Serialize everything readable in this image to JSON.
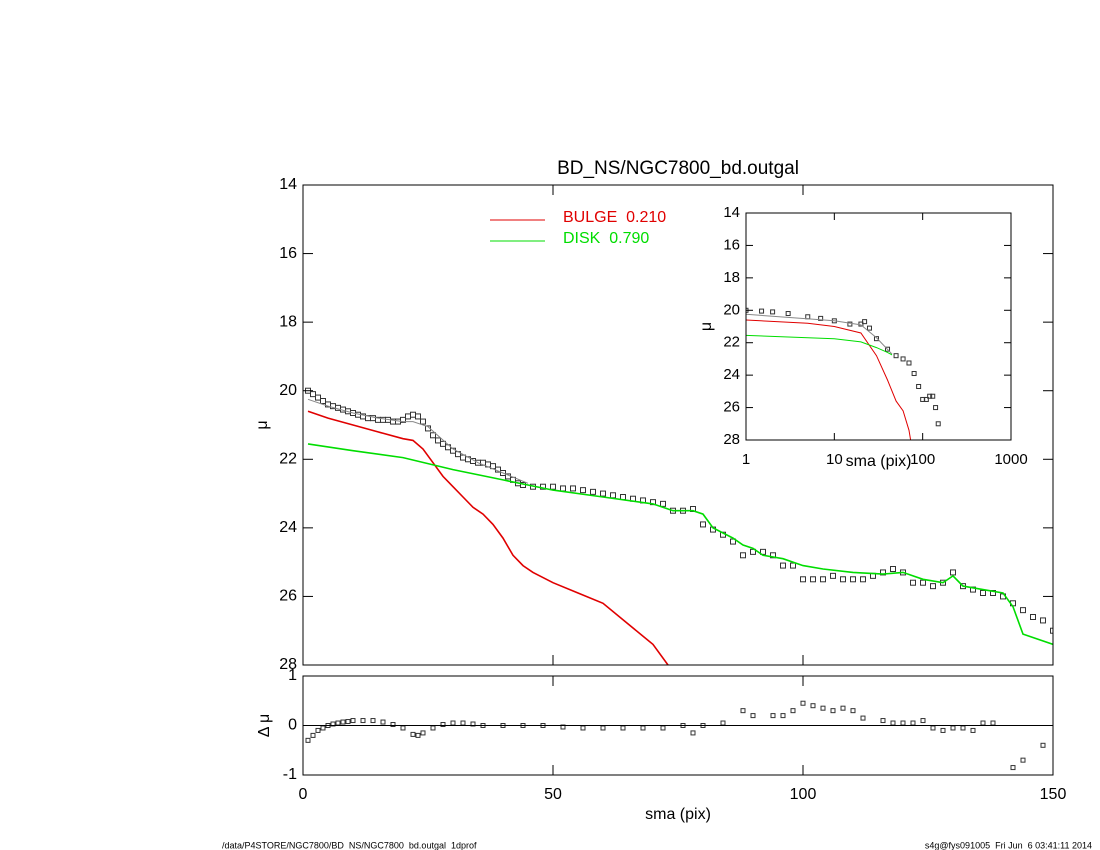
{
  "chart_data": [
    {
      "type": "line",
      "title": "BD_NS/NGC7800_bd.outgal",
      "ylabel": "μ",
      "xlim": [
        0,
        150
      ],
      "xticks": [
        0,
        50,
        100,
        150
      ],
      "xtick_labels": false,
      "ylim": [
        14,
        28
      ],
      "yticks": [
        14,
        16,
        18,
        20,
        22,
        24,
        26,
        28
      ],
      "y_inverted": true,
      "series": [
        {
          "style": "markers",
          "color": "#333333",
          "x": [
            1,
            2,
            3,
            4,
            5,
            6,
            7,
            8,
            9,
            10,
            11,
            12,
            13,
            14,
            15,
            16,
            17,
            18,
            19,
            20,
            21,
            22,
            23,
            24,
            25,
            26,
            27,
            28,
            29,
            30,
            31,
            32,
            33,
            34,
            35,
            36,
            37,
            38,
            39,
            40,
            41,
            42,
            43,
            44,
            46,
            48,
            50,
            52,
            54,
            56,
            58,
            60,
            62,
            64,
            66,
            68,
            70,
            72,
            74,
            76,
            78,
            80,
            82,
            84,
            86,
            88,
            90,
            92,
            94,
            96,
            98,
            100,
            102,
            104,
            106,
            108,
            110,
            112,
            114,
            116,
            118,
            120,
            122,
            124,
            126,
            128,
            130,
            132,
            134,
            136,
            138,
            140,
            142,
            144,
            146,
            148,
            150
          ],
          "values": [
            20.0,
            20.1,
            20.2,
            20.3,
            20.4,
            20.45,
            20.5,
            20.55,
            20.6,
            20.65,
            20.7,
            20.75,
            20.8,
            20.8,
            20.85,
            20.85,
            20.85,
            20.9,
            20.9,
            20.85,
            20.75,
            20.7,
            20.75,
            20.9,
            21.1,
            21.3,
            21.45,
            21.55,
            21.65,
            21.75,
            21.85,
            21.95,
            22.0,
            22.05,
            22.1,
            22.1,
            22.15,
            22.2,
            22.3,
            22.4,
            22.5,
            22.6,
            22.7,
            22.75,
            22.8,
            22.8,
            22.8,
            22.85,
            22.85,
            22.9,
            22.95,
            23.0,
            23.05,
            23.1,
            23.15,
            23.2,
            23.25,
            23.3,
            23.5,
            23.5,
            23.45,
            23.9,
            24.05,
            24.2,
            24.4,
            24.8,
            24.7,
            24.7,
            24.8,
            25.1,
            25.1,
            25.5,
            25.5,
            25.5,
            25.4,
            25.5,
            25.5,
            25.5,
            25.4,
            25.3,
            25.2,
            25.3,
            25.6,
            25.6,
            25.7,
            25.6,
            25.3,
            25.7,
            25.8,
            25.9,
            25.9,
            26.0,
            26.2,
            26.4,
            26.6,
            26.7,
            27.0
          ]
        },
        {
          "style": "line",
          "color": "#888888",
          "x": [
            1,
            5,
            10,
            15,
            20,
            22,
            25,
            30,
            35,
            40,
            45
          ],
          "values": [
            20.25,
            20.45,
            20.65,
            20.8,
            20.9,
            20.9,
            21.05,
            21.7,
            22.1,
            22.4,
            22.7
          ]
        },
        {
          "style": "line",
          "name": "BULGE  0.210",
          "color": "#e00000",
          "x": [
            1,
            5,
            10,
            15,
            20,
            22,
            24,
            26,
            28,
            30,
            32,
            34,
            36,
            38,
            40,
            42,
            44,
            46,
            50,
            55,
            60,
            65,
            70,
            73
          ],
          "values": [
            20.6,
            20.8,
            21.0,
            21.2,
            21.4,
            21.45,
            21.7,
            22.1,
            22.5,
            22.8,
            23.1,
            23.4,
            23.6,
            23.9,
            24.3,
            24.8,
            25.1,
            25.3,
            25.6,
            25.9,
            26.2,
            26.8,
            27.4,
            28.0
          ]
        },
        {
          "style": "line",
          "name": "DISK  0.790",
          "color": "#00dd00",
          "x": [
            1,
            10,
            20,
            30,
            40,
            50,
            60,
            70,
            74,
            78,
            80,
            82,
            86,
            88,
            90,
            92,
            96,
            100,
            104,
            110,
            116,
            120,
            124,
            128,
            130,
            132,
            136,
            140,
            142,
            144,
            150
          ],
          "values": [
            21.55,
            21.75,
            21.95,
            22.3,
            22.6,
            22.9,
            23.1,
            23.3,
            23.5,
            23.5,
            23.6,
            24.0,
            24.3,
            24.5,
            24.6,
            24.8,
            24.9,
            25.1,
            25.2,
            25.3,
            25.35,
            25.3,
            25.5,
            25.6,
            25.4,
            25.7,
            25.8,
            25.9,
            26.3,
            27.1,
            27.4
          ]
        }
      ]
    },
    {
      "type": "line",
      "xlabel": "sma (pix)",
      "ylabel": "μ",
      "xlog": true,
      "xlim": [
        1,
        1000
      ],
      "xticks": [
        1,
        10,
        100,
        1000
      ],
      "ylim": [
        14,
        28
      ],
      "yticks": [
        14,
        16,
        18,
        20,
        22,
        24,
        26,
        28
      ],
      "y_inverted": true,
      "series": [
        {
          "style": "markers",
          "color": "#333333",
          "x": [
            1,
            1.5,
            2,
            3,
            5,
            7,
            10,
            15,
            20,
            22,
            25,
            30,
            40,
            50,
            60,
            70,
            80,
            90,
            100,
            110,
            120,
            130,
            140,
            150
          ],
          "values": [
            20.0,
            20.05,
            20.1,
            20.2,
            20.4,
            20.5,
            20.65,
            20.85,
            20.85,
            20.7,
            21.1,
            21.75,
            22.4,
            22.8,
            23.0,
            23.25,
            23.9,
            24.7,
            25.5,
            25.5,
            25.3,
            25.3,
            26.0,
            27.0
          ]
        },
        {
          "style": "line",
          "color": "#888888",
          "x": [
            1,
            10,
            20,
            30,
            45
          ],
          "values": [
            20.25,
            20.65,
            20.9,
            21.7,
            22.7
          ]
        },
        {
          "style": "line",
          "color": "#e00000",
          "x": [
            1,
            5,
            10,
            20,
            30,
            40,
            50,
            60,
            70,
            73
          ],
          "values": [
            20.6,
            20.8,
            21.0,
            21.4,
            22.8,
            24.3,
            25.6,
            26.2,
            27.4,
            28.0
          ]
        },
        {
          "style": "line",
          "color": "#00dd00",
          "x": [
            1,
            10,
            20,
            30,
            40,
            45
          ],
          "values": [
            21.55,
            21.75,
            21.95,
            22.3,
            22.6,
            22.75
          ]
        }
      ]
    },
    {
      "type": "line",
      "xlabel": "sma (pix)",
      "ylabel": "Δ μ",
      "zero_line": true,
      "xlim": [
        0,
        150
      ],
      "xticks": [
        0,
        50,
        100,
        150
      ],
      "ylim": [
        -1,
        1
      ],
      "yticks": [
        -1,
        0,
        1
      ],
      "series": [
        {
          "style": "markers",
          "color": "#333333",
          "x": [
            1,
            2,
            3,
            4,
            5,
            6,
            7,
            8,
            9,
            10,
            12,
            14,
            16,
            18,
            20,
            22,
            23,
            24,
            26,
            28,
            30,
            32,
            34,
            36,
            40,
            44,
            48,
            52,
            56,
            60,
            64,
            68,
            72,
            76,
            78,
            80,
            84,
            88,
            90,
            94,
            96,
            98,
            100,
            102,
            104,
            106,
            108,
            110,
            112,
            116,
            118,
            120,
            122,
            124,
            126,
            128,
            130,
            132,
            134,
            136,
            138,
            142,
            144,
            148
          ],
          "values": [
            -0.3,
            -0.2,
            -0.1,
            -0.05,
            0.0,
            0.03,
            0.05,
            0.07,
            0.08,
            0.1,
            0.1,
            0.1,
            0.07,
            0.02,
            -0.05,
            -0.18,
            -0.2,
            -0.15,
            -0.05,
            0.02,
            0.05,
            0.05,
            0.03,
            0,
            0,
            0,
            0,
            -0.03,
            -0.05,
            -0.05,
            -0.05,
            -0.05,
            -0.05,
            0,
            -0.15,
            0,
            0.05,
            0.3,
            0.2,
            0.2,
            0.2,
            0.3,
            0.45,
            0.4,
            0.35,
            0.3,
            0.35,
            0.3,
            0.15,
            0.1,
            0.05,
            0.05,
            0.05,
            0.1,
            -0.05,
            -0.1,
            -0.05,
            -0.05,
            -0.1,
            0.05,
            0.05,
            -0.85,
            -0.7,
            -0.4
          ]
        }
      ]
    }
  ],
  "footer": {
    "left": "/data/P4STORE/NGC7800/BD_NS/NGC7800_bd.outgal_1dprof",
    "right": "s4g@fys091005  Fri Jun  6 03:41:11 2014"
  }
}
